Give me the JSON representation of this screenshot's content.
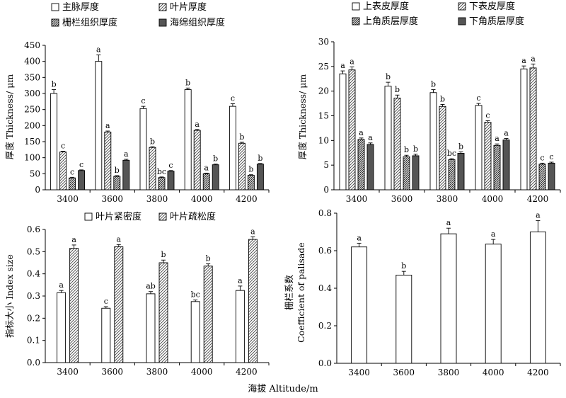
{
  "xlabel": "海拔 Altitude/m",
  "chart_data": [
    {
      "type": "bar",
      "categories": [
        "3400",
        "3600",
        "3800",
        "4000",
        "4200"
      ],
      "ylabel": "厚度 Thickness/ μm",
      "xlabel": "",
      "ylim": [
        0,
        450
      ],
      "yticks": [
        0,
        50,
        100,
        150,
        200,
        250,
        300,
        350,
        400,
        450
      ],
      "legend_position": "top",
      "series": [
        {
          "name": "主脉厚度",
          "pattern": "white",
          "values": [
            300,
            400,
            253,
            312,
            260
          ],
          "errors": [
            12,
            20,
            7,
            5,
            8
          ],
          "letters": [
            "b",
            "a",
            "c",
            "b",
            "c"
          ]
        },
        {
          "name": "叶片厚度",
          "pattern": "hatch",
          "values": [
            118,
            180,
            132,
            185,
            145
          ],
          "errors": [
            2,
            3,
            2,
            3,
            3
          ],
          "letters": [
            "c",
            "a",
            "b",
            "a",
            "b"
          ]
        },
        {
          "name": "栅栏组织厚度",
          "pattern": "dense",
          "values": [
            37,
            42,
            38,
            50,
            45
          ],
          "errors": [
            2,
            2,
            2,
            2,
            2
          ],
          "letters": [
            "c",
            "b",
            "bc",
            "a",
            "b"
          ]
        },
        {
          "name": "海绵组织厚度",
          "pattern": "dark",
          "values": [
            60,
            92,
            58,
            78,
            80
          ],
          "errors": [
            2,
            3,
            2,
            2,
            2
          ],
          "letters": [
            "c",
            "a",
            "c",
            "b",
            "b"
          ]
        }
      ]
    },
    {
      "type": "bar",
      "categories": [
        "3400",
        "3600",
        "3800",
        "4000",
        "4200"
      ],
      "ylabel": "厚度 Thickness/ μm",
      "xlabel": "",
      "ylim": [
        0,
        30
      ],
      "yticks": [
        0,
        5,
        10,
        15,
        20,
        25,
        30
      ],
      "legend_position": "top",
      "series": [
        {
          "name": "上表皮厚度",
          "pattern": "white",
          "values": [
            23.5,
            21,
            19.7,
            17.1,
            24.5
          ],
          "errors": [
            0.6,
            0.8,
            0.6,
            0.4,
            0.6
          ],
          "letters": [
            "a",
            "b",
            "b",
            "c",
            "a"
          ]
        },
        {
          "name": "下表皮厚度",
          "pattern": "hatch",
          "values": [
            24.3,
            18.6,
            16.9,
            13.7,
            24.7
          ],
          "errors": [
            0.6,
            0.6,
            0.4,
            0.3,
            0.8
          ],
          "letters": [
            "a",
            "b",
            "b",
            "c",
            "a"
          ]
        },
        {
          "name": "上角质层厚度",
          "pattern": "dense",
          "values": [
            10.2,
            6.7,
            6.1,
            9.0,
            5.2
          ],
          "errors": [
            0.3,
            0.3,
            0.2,
            0.3,
            0.2
          ],
          "letters": [
            "a",
            "b",
            "bc",
            "a",
            "c"
          ]
        },
        {
          "name": "下角质层厚度",
          "pattern": "dark",
          "values": [
            9.2,
            6.9,
            7.4,
            10.1,
            5.4
          ],
          "errors": [
            0.3,
            0.3,
            0.3,
            0.3,
            0.2
          ],
          "letters": [
            "a",
            "b",
            "b",
            "a",
            "c"
          ]
        }
      ]
    },
    {
      "type": "bar",
      "categories": [
        "3400",
        "3600",
        "3800",
        "4000",
        "4200"
      ],
      "ylabel": "指标大小 Index size",
      "xlabel": "",
      "ylim": [
        0,
        0.6
      ],
      "yticks": [
        0,
        0.1,
        0.2,
        0.3,
        0.4,
        0.5,
        0.6
      ],
      "legend_position": "top",
      "series": [
        {
          "name": "叶片紧密度",
          "pattern": "white",
          "values": [
            0.315,
            0.245,
            0.31,
            0.275,
            0.325
          ],
          "errors": [
            0.01,
            0.007,
            0.01,
            0.007,
            0.02
          ],
          "letters": [
            "a",
            "c",
            "ab",
            "bc",
            "a"
          ]
        },
        {
          "name": "叶片疏松度",
          "pattern": "hatch",
          "values": [
            0.515,
            0.522,
            0.45,
            0.435,
            0.555
          ],
          "errors": [
            0.015,
            0.01,
            0.012,
            0.01,
            0.012
          ],
          "letters": [
            "a",
            "a",
            "b",
            "b",
            "a"
          ]
        }
      ]
    },
    {
      "type": "bar",
      "categories": [
        "3400",
        "3600",
        "3800",
        "4000",
        "4200"
      ],
      "ylabel": "栅栏系数",
      "ylabel2": "Coefficient of palisade",
      "xlabel": "",
      "ylim": [
        0,
        0.8
      ],
      "yticks": [
        0,
        0.2,
        0.4,
        0.6,
        0.8
      ],
      "series": [
        {
          "name": "",
          "pattern": "white",
          "values": [
            0.62,
            0.47,
            0.69,
            0.635,
            0.7
          ],
          "errors": [
            0.02,
            0.02,
            0.03,
            0.025,
            0.06
          ],
          "letters": [
            "a",
            "b",
            "a",
            "a",
            "a"
          ]
        }
      ]
    }
  ]
}
